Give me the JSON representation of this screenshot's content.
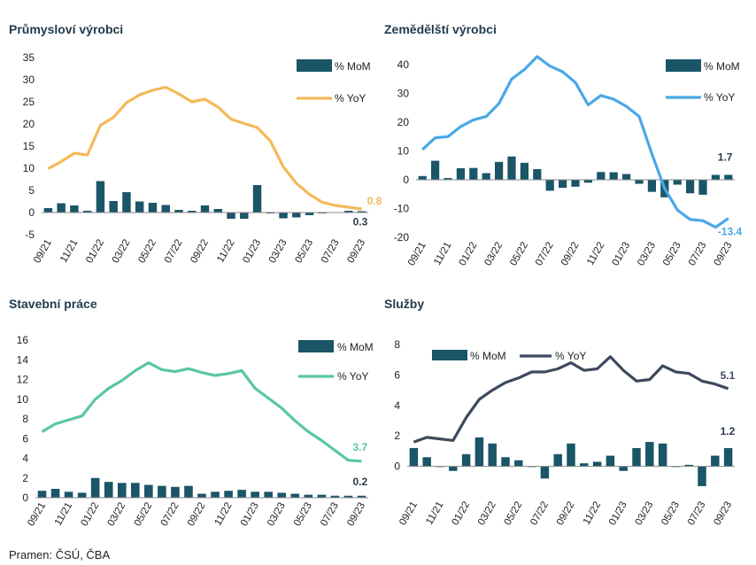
{
  "source": "Pramen: ČSÚ, ČBA",
  "colors": {
    "bar": "#1a5568",
    "axis": "#888888"
  },
  "chart_data": [
    {
      "type": "bar+line",
      "title": "Průmysloví výrobci",
      "categories": [
        "09/21",
        "10/21",
        "11/21",
        "12/21",
        "01/22",
        "02/22",
        "03/22",
        "04/22",
        "05/22",
        "06/22",
        "07/22",
        "08/22",
        "09/22",
        "10/22",
        "11/22",
        "12/22",
        "01/23",
        "02/23",
        "03/23",
        "04/23",
        "05/23",
        "06/23",
        "07/23",
        "08/23",
        "09/23"
      ],
      "xtick_labels": [
        "09/21",
        "11/21",
        "01/22",
        "03/22",
        "05/22",
        "07/22",
        "09/22",
        "11/22",
        "01/23",
        "03/23",
        "05/23",
        "07/23",
        "09/23"
      ],
      "ylim": [
        -5,
        35
      ],
      "yticks": [
        -5,
        0,
        5,
        10,
        15,
        20,
        25,
        30,
        35
      ],
      "line_color": "#f5b95a",
      "series": [
        {
          "name": "% MoM",
          "kind": "bar",
          "values": [
            1.0,
            2.1,
            1.6,
            0.4,
            7.1,
            2.6,
            4.6,
            2.5,
            2.2,
            1.7,
            0.6,
            0.4,
            1.6,
            0.8,
            -1.4,
            -1.4,
            6.2,
            -0.2,
            -1.3,
            -1.1,
            -0.6,
            -0.2,
            0.1,
            0.4,
            0.3
          ]
        },
        {
          "name": "% YoY",
          "kind": "line",
          "values": [
            9.9,
            11.5,
            13.4,
            13.0,
            19.7,
            21.5,
            24.8,
            26.6,
            27.6,
            28.3,
            26.8,
            25.0,
            25.6,
            23.8,
            21.1,
            20.1,
            19.2,
            16.2,
            10.3,
            6.6,
            4.1,
            2.3,
            1.6,
            1.2,
            0.8
          ]
        }
      ],
      "labels": {
        "yoy": "0.8",
        "mom": "0.3"
      }
    },
    {
      "type": "bar+line",
      "title": "Zemědělští výrobci",
      "categories": [
        "09/21",
        "10/21",
        "11/21",
        "12/21",
        "01/22",
        "02/22",
        "03/22",
        "04/22",
        "05/22",
        "06/22",
        "07/22",
        "08/22",
        "09/22",
        "10/22",
        "11/22",
        "12/22",
        "01/23",
        "02/23",
        "03/23",
        "04/23",
        "05/23",
        "06/23",
        "07/23",
        "08/23",
        "09/23"
      ],
      "xtick_labels": [
        "09/21",
        "11/21",
        "01/22",
        "03/22",
        "05/22",
        "07/22",
        "09/22",
        "11/22",
        "01/23",
        "03/23",
        "05/23",
        "07/23",
        "09/23"
      ],
      "ylim": [
        -20,
        40
      ],
      "yticks": [
        -20,
        -10,
        0,
        10,
        20,
        30,
        40
      ],
      "line_color": "#4aa8e6",
      "series": [
        {
          "name": "% MoM",
          "kind": "bar",
          "values": [
            1.3,
            6.6,
            0.6,
            4.0,
            4.1,
            2.3,
            6.2,
            8.1,
            5.9,
            3.7,
            -3.8,
            -2.8,
            -2.4,
            -1.0,
            2.7,
            2.6,
            2.0,
            -1.4,
            -4.2,
            -6.1,
            -1.7,
            -4.7,
            -5.2,
            1.7,
            1.7
          ]
        },
        {
          "name": "% YoY",
          "kind": "line",
          "values": [
            10.5,
            14.6,
            15.0,
            18.5,
            20.8,
            22.0,
            26.5,
            35.0,
            38.3,
            42.8,
            39.5,
            37.5,
            33.8,
            26.0,
            29.3,
            28.0,
            25.5,
            22.0,
            9.0,
            -3.0,
            -10.5,
            -13.8,
            -14.2,
            -16.5,
            -13.4
          ]
        }
      ],
      "labels": {
        "yoy": "-13.4",
        "mom": "1.7"
      }
    },
    {
      "type": "bar+line",
      "title": "Stavební práce",
      "categories": [
        "09/21",
        "10/21",
        "11/21",
        "12/21",
        "01/22",
        "02/22",
        "03/22",
        "04/22",
        "05/22",
        "06/22",
        "07/22",
        "08/22",
        "09/22",
        "10/22",
        "11/22",
        "12/22",
        "01/23",
        "02/23",
        "03/23",
        "04/23",
        "05/23",
        "06/23",
        "07/23",
        "08/23",
        "09/23"
      ],
      "xtick_labels": [
        "09/21",
        "11/21",
        "01/22",
        "03/22",
        "05/22",
        "07/22",
        "09/22",
        "11/22",
        "01/23",
        "03/23",
        "05/23",
        "07/23",
        "09/23"
      ],
      "ylim": [
        0,
        16
      ],
      "yticks": [
        0,
        2,
        4,
        6,
        8,
        10,
        12,
        14,
        16
      ],
      "line_color": "#5ac79e",
      "series": [
        {
          "name": "% MoM",
          "kind": "bar",
          "values": [
            0.7,
            0.9,
            0.6,
            0.5,
            2.0,
            1.6,
            1.5,
            1.5,
            1.3,
            1.2,
            1.1,
            1.2,
            0.4,
            0.6,
            0.7,
            0.8,
            0.6,
            0.6,
            0.5,
            0.4,
            0.3,
            0.3,
            0.2,
            0.2,
            0.2
          ]
        },
        {
          "name": "% YoY",
          "kind": "line",
          "values": [
            6.7,
            7.5,
            7.9,
            8.3,
            10.0,
            11.1,
            11.9,
            12.9,
            13.7,
            13.0,
            12.8,
            13.1,
            12.7,
            12.4,
            12.6,
            12.9,
            11.1,
            10.1,
            9.1,
            7.8,
            6.7,
            5.8,
            4.8,
            3.8,
            3.7
          ]
        }
      ],
      "labels": {
        "yoy": "3.7",
        "mom": "0.2"
      }
    },
    {
      "type": "bar+line",
      "title": "Služby",
      "categories": [
        "09/21",
        "10/21",
        "11/21",
        "12/21",
        "01/22",
        "02/22",
        "03/22",
        "04/22",
        "05/22",
        "06/22",
        "07/22",
        "08/22",
        "09/22",
        "10/22",
        "11/22",
        "12/22",
        "01/23",
        "02/23",
        "03/23",
        "04/23",
        "05/23",
        "06/23",
        "07/23",
        "08/23",
        "09/23"
      ],
      "xtick_labels": [
        "09/21",
        "11/21",
        "01/22",
        "03/22",
        "05/22",
        "07/22",
        "09/22",
        "11/22",
        "01/23",
        "03/23",
        "05/23",
        "07/23",
        "09/23"
      ],
      "ylim": [
        -2,
        8
      ],
      "yticks": [
        0,
        2,
        4,
        6,
        8
      ],
      "line_color": "#3d4a5c",
      "series": [
        {
          "name": "% MoM",
          "kind": "bar",
          "values": [
            1.2,
            0.6,
            0.0,
            -0.3,
            0.8,
            1.9,
            1.5,
            0.6,
            0.4,
            0.0,
            -0.8,
            0.8,
            1.5,
            0.2,
            0.3,
            0.7,
            -0.3,
            1.2,
            1.6,
            1.5,
            0.0,
            0.1,
            -1.3,
            0.7,
            1.2
          ]
        },
        {
          "name": "% YoY",
          "kind": "line",
          "values": [
            1.6,
            1.9,
            1.8,
            1.7,
            3.2,
            4.4,
            5.0,
            5.5,
            5.8,
            6.2,
            6.2,
            6.4,
            6.8,
            6.3,
            6.4,
            7.2,
            6.3,
            5.6,
            5.7,
            6.6,
            6.2,
            6.1,
            5.6,
            5.4,
            5.1
          ]
        }
      ],
      "labels": {
        "yoy": "5.1",
        "mom": "1.2"
      }
    }
  ]
}
